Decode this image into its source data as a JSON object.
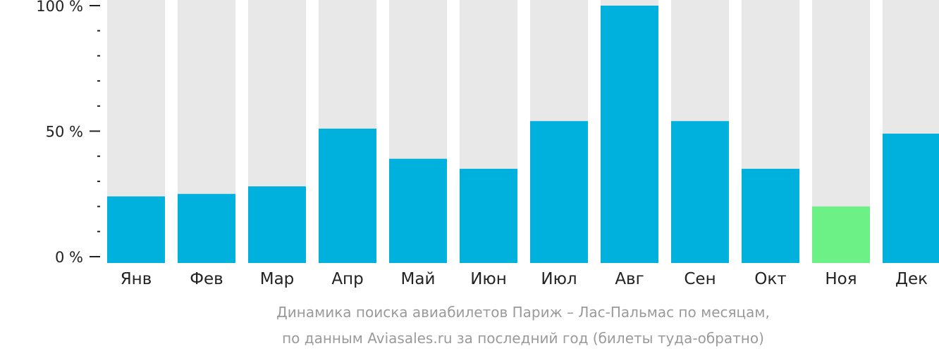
{
  "chart_data": {
    "type": "bar",
    "categories": [
      "Янв",
      "Фев",
      "Мар",
      "Апр",
      "Май",
      "Июн",
      "Июл",
      "Авг",
      "Сен",
      "Окт",
      "Ноя",
      "Дек"
    ],
    "values": [
      24,
      25,
      28,
      51,
      39,
      35,
      54,
      100,
      54,
      35,
      20,
      49
    ],
    "highlight_index": 10,
    "ylim": [
      0,
      100
    ],
    "y_ticks": [
      {
        "value": 0,
        "label": "0 %"
      },
      {
        "value": 50,
        "label": "50 %"
      },
      {
        "value": 100,
        "label": "100 %"
      }
    ],
    "y_minor_step": 10,
    "caption": [
      "Динамика поиска авиабилетов Париж – Лас-Пальмас по месяцам,",
      "по данным Aviasales.ru за последний год (билеты туда-обратно)"
    ],
    "grid": false,
    "legend": "none",
    "colors": {
      "bar": "#00b0dd",
      "highlight": "#6cf187",
      "track": "#e8e8e8",
      "axis": "#222222"
    }
  }
}
